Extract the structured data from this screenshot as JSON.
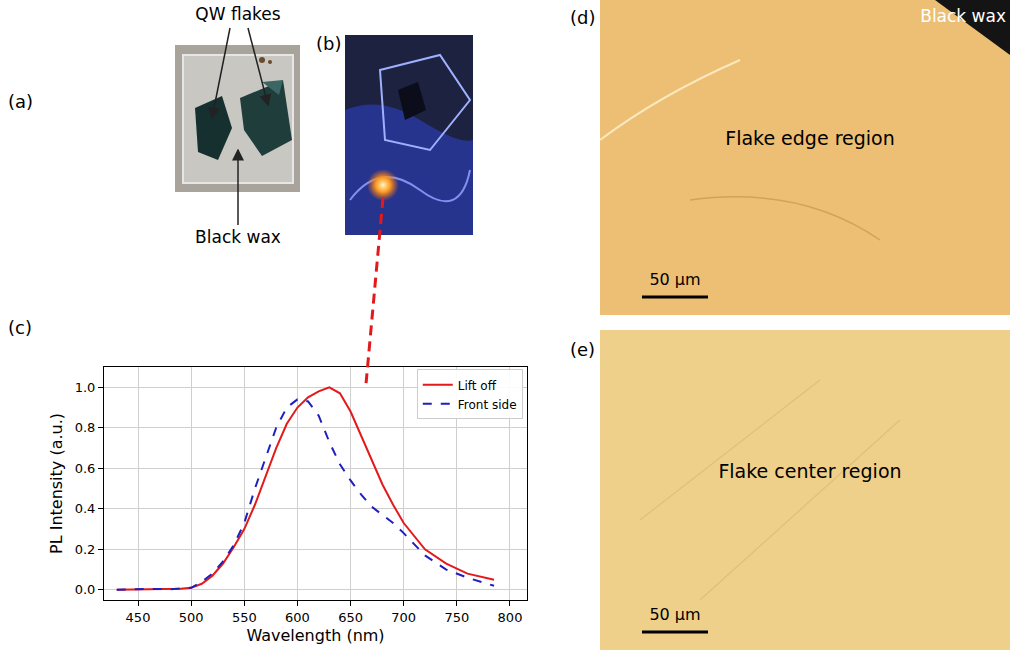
{
  "panels": {
    "a": {
      "label": "(a)",
      "flake_label": "QW flakes",
      "wax_label": "Black wax"
    },
    "b": {
      "label": "(b)"
    },
    "c": {
      "label": "(c)"
    },
    "d": {
      "label": "(d)",
      "corner_text": "Black wax",
      "region": "Flake edge region",
      "scale_bar": "50 μm"
    },
    "e": {
      "label": "(e)",
      "region": "Flake center region",
      "scale_bar": "50 μm"
    }
  },
  "chart_data": {
    "type": "line",
    "x_label": "Wavelength (nm)",
    "y_label": "PL Intensity (a.u.)",
    "xlim": [
      418,
      816
    ],
    "ylim": [
      -0.05,
      1.1
    ],
    "xticks": [
      450,
      500,
      550,
      600,
      650,
      700,
      750,
      800
    ],
    "yticks": [
      {
        "value": 0,
        "label": "0.0"
      },
      {
        "value": 0.2,
        "label": "0.2"
      },
      {
        "value": 0.4,
        "label": "0.4"
      },
      {
        "value": 0.6,
        "label": "0.6"
      },
      {
        "value": 0.8,
        "label": "0.8"
      },
      {
        "value": 1,
        "label": "1.0"
      }
    ],
    "grid": true,
    "legend": "upper right",
    "series": [
      {
        "name": "Lift off",
        "color": "#e31a1c",
        "line_style": "solid",
        "x": [
          430,
          450,
          470,
          490,
          500,
          510,
          520,
          530,
          540,
          550,
          560,
          570,
          580,
          590,
          600,
          610,
          620,
          630,
          640,
          650,
          660,
          670,
          680,
          690,
          700,
          720,
          740,
          760,
          785
        ],
        "values": [
          0,
          0.002,
          0.003,
          0.005,
          0.01,
          0.03,
          0.07,
          0.13,
          0.21,
          0.3,
          0.42,
          0.56,
          0.7,
          0.82,
          0.9,
          0.95,
          0.98,
          1.0,
          0.97,
          0.88,
          0.76,
          0.64,
          0.52,
          0.42,
          0.33,
          0.2,
          0.13,
          0.08,
          0.05
        ]
      },
      {
        "name": "Front side",
        "color": "#1f1fbf",
        "line_style": "dashed",
        "x": [
          430,
          460,
          480,
          500,
          510,
          520,
          530,
          540,
          550,
          560,
          570,
          580,
          590,
          600,
          610,
          620,
          630,
          640,
          650,
          660,
          670,
          680,
          690,
          700,
          720,
          740,
          760,
          785
        ],
        "values": [
          0,
          0.005,
          0.003,
          0.01,
          0.04,
          0.08,
          0.14,
          0.22,
          0.33,
          0.5,
          0.65,
          0.8,
          0.9,
          0.94,
          0.93,
          0.86,
          0.73,
          0.62,
          0.54,
          0.47,
          0.41,
          0.37,
          0.33,
          0.28,
          0.17,
          0.1,
          0.06,
          0.02
        ]
      }
    ]
  }
}
